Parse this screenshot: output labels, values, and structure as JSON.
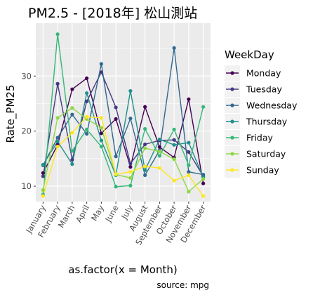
{
  "chart_data": {
    "type": "line",
    "title": "PM2.5 - [2018年]  松山測站",
    "xlabel": "as.factor(x = Month)",
    "ylabel": "Rate_PM25",
    "caption": "source: mpg",
    "categories": [
      "January",
      "February",
      "March",
      "April",
      "May",
      "June",
      "July",
      "August",
      "September",
      "October",
      "November",
      "December"
    ],
    "yticks": [
      10,
      20,
      30
    ],
    "ylim": [
      7.2,
      39.6
    ],
    "grid": true,
    "legend": {
      "title": "WeekDay",
      "position": "right"
    },
    "series": [
      {
        "name": "Monday",
        "color": "#440154",
        "values": [
          12.4,
          17.5,
          27.6,
          29.6,
          19.6,
          22.2,
          13.5,
          24.4,
          17.1,
          15.2,
          25.8,
          10.5
        ]
      },
      {
        "name": "Tuesday",
        "color": "#443A83",
        "values": [
          11.8,
          28.6,
          14.8,
          25.4,
          30.7,
          24.3,
          14.1,
          17.6,
          18.3,
          18.4,
          16.2,
          11.8
        ]
      },
      {
        "name": "Wednesday",
        "color": "#31688E",
        "values": [
          13.8,
          18.8,
          23.0,
          19.5,
          32.2,
          15.4,
          22.3,
          12.0,
          16.5,
          35.1,
          12.6,
          12.1
        ]
      },
      {
        "name": "Thursday",
        "color": "#21908C",
        "values": [
          13.9,
          18.1,
          14.0,
          26.9,
          18.3,
          12.0,
          27.3,
          12.9,
          18.5,
          17.5,
          17.9,
          11.6
        ]
      },
      {
        "name": "Friday",
        "color": "#35B779",
        "values": [
          8.5,
          37.6,
          16.4,
          20.3,
          17.2,
          9.9,
          10.1,
          20.4,
          15.5,
          20.3,
          13.8,
          24.4
        ]
      },
      {
        "name": "Saturday",
        "color": "#8FD744",
        "values": [
          9.3,
          22.4,
          24.2,
          22.2,
          20.6,
          12.1,
          11.5,
          16.9,
          16.3,
          14.9,
          9.0,
          11.3
        ]
      },
      {
        "name": "Sunday",
        "color": "#FDE725",
        "values": [
          8.2,
          17.2,
          19.7,
          22.6,
          22.4,
          12.2,
          12.6,
          13.6,
          13.3,
          11.0,
          12.0,
          8.2
        ]
      }
    ]
  }
}
